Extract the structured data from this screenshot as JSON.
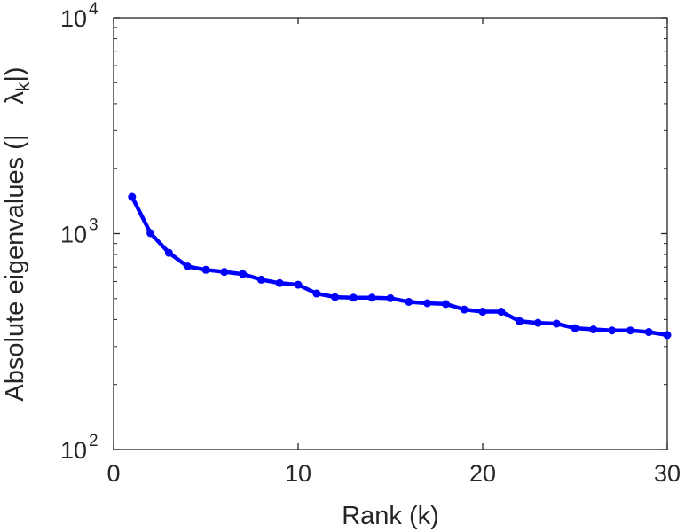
{
  "chart_data": {
    "type": "line",
    "title": "",
    "xlabel": "Rank (k)",
    "ylabel": "Absolute eigenvalues (|λk|)",
    "ylabel_parts": {
      "prefix": "Absolute eigenvalues (|",
      "symbol": "λ",
      "subscript": "k",
      "suffix": "|)"
    },
    "xlim": [
      0,
      30
    ],
    "ylim": [
      100,
      10000
    ],
    "yscale": "log",
    "xticks": [
      {
        "value": 0,
        "label": "0"
      },
      {
        "value": 10,
        "label": "10"
      },
      {
        "value": 20,
        "label": "20"
      },
      {
        "value": 30,
        "label": "30"
      }
    ],
    "yticks": [
      {
        "value": 100,
        "base": "10",
        "exp": "2"
      },
      {
        "value": 1000,
        "base": "10",
        "exp": "3"
      },
      {
        "value": 10000,
        "base": "10",
        "exp": "4"
      }
    ],
    "grid": false,
    "legend": "none",
    "series": [
      {
        "color": "#0000ff",
        "marker": "circle",
        "x": [
          1,
          2,
          3,
          4,
          5,
          6,
          7,
          8,
          9,
          10,
          11,
          12,
          13,
          14,
          15,
          16,
          17,
          18,
          19,
          20,
          21,
          22,
          23,
          24,
          25,
          26,
          27,
          28,
          29,
          30
        ],
        "y": [
          1480,
          1005,
          815,
          705,
          680,
          665,
          650,
          612,
          590,
          580,
          528,
          508,
          505,
          505,
          502,
          483,
          476,
          472,
          445,
          435,
          435,
          393,
          386,
          383,
          365,
          360,
          356,
          356,
          350,
          339
        ]
      }
    ]
  }
}
